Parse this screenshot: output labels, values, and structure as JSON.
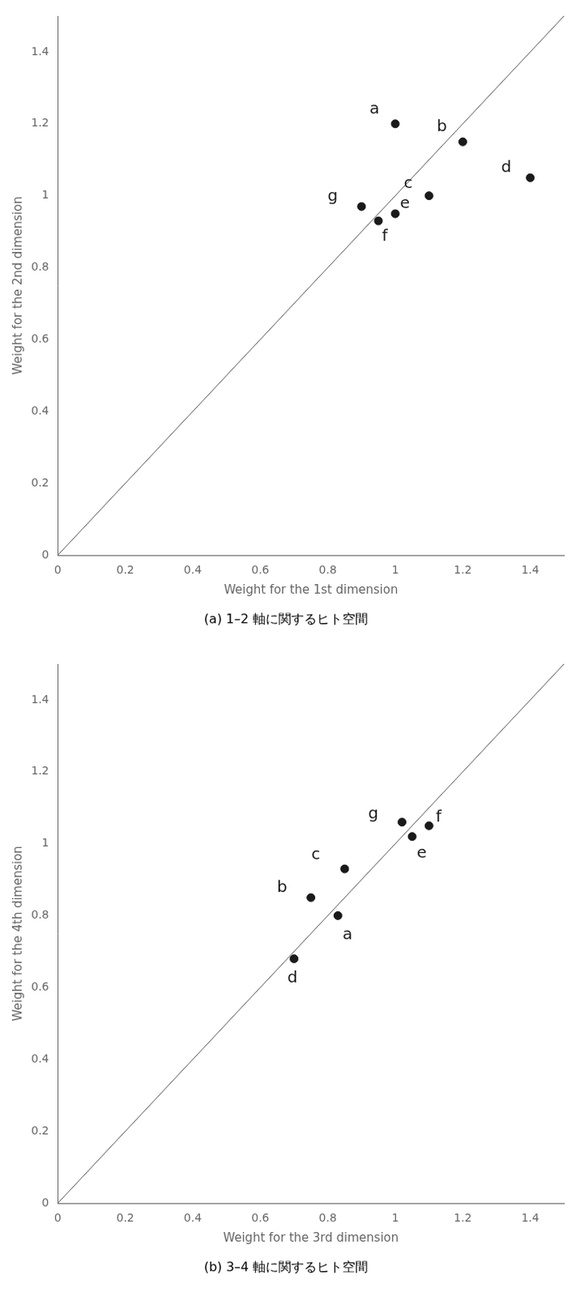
{
  "chart_data": [
    {
      "type": "scatter",
      "title": "(a) 1–2 軸に関するヒト空間",
      "xlabel": "Weight for the 1st dimension",
      "ylabel": "Weight for the 2nd dimension",
      "x": [
        1.0,
        1.2,
        1.1,
        1.4,
        1.0,
        0.95,
        0.9
      ],
      "values": [
        1.2,
        1.15,
        1.0,
        1.05,
        0.95,
        0.93,
        0.97
      ],
      "point_labels": [
        "a",
        "b",
        "c",
        "d",
        "e",
        "f",
        "g"
      ],
      "color": "#1a1a1a",
      "xlim": [
        0,
        1.5
      ],
      "ylim": [
        0,
        1.5
      ],
      "xticks": [
        0,
        0.2,
        0.4,
        0.6,
        0.8,
        1.0,
        1.2,
        1.4
      ],
      "yticks": [
        0,
        0.2,
        0.4,
        0.6,
        0.8,
        1.0,
        1.2,
        1.4
      ],
      "grid": false,
      "annotations": [
        {
          "type": "line",
          "x": [
            0,
            1.5
          ],
          "y": [
            0,
            1.5
          ],
          "color": "#555555"
        }
      ]
    },
    {
      "type": "scatter",
      "title": "(b) 3–4 軸に関するヒト空間",
      "xlabel": "Weight for the 3rd dimension",
      "ylabel": "Weight for the 4th dimension",
      "x": [
        0.83,
        0.75,
        0.85,
        0.7,
        1.05,
        1.1,
        1.02
      ],
      "values": [
        0.8,
        0.85,
        0.93,
        0.68,
        1.02,
        1.05,
        1.06
      ],
      "point_labels": [
        "a",
        "b",
        "c",
        "d",
        "e",
        "f",
        "g"
      ],
      "color": "#1a1a1a",
      "xlim": [
        0,
        1.5
      ],
      "ylim": [
        0,
        1.5
      ],
      "xticks": [
        0,
        0.2,
        0.4,
        0.6,
        0.8,
        1.0,
        1.2,
        1.4
      ],
      "yticks": [
        0,
        0.2,
        0.4,
        0.6,
        0.8,
        1.0,
        1.2,
        1.4
      ],
      "grid": false,
      "annotations": [
        {
          "type": "line",
          "x": [
            0,
            1.5
          ],
          "y": [
            0,
            1.5
          ],
          "color": "#555555"
        }
      ]
    }
  ]
}
